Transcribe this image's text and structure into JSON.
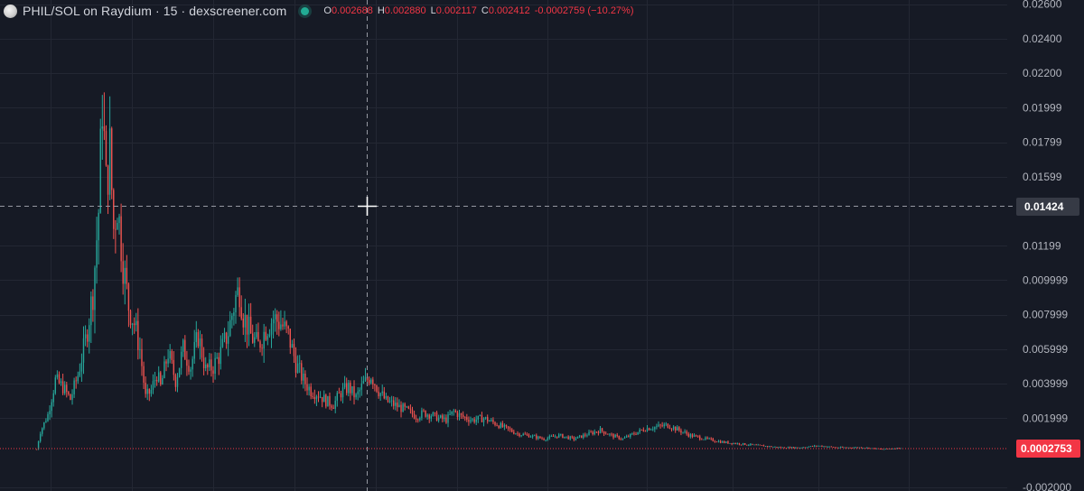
{
  "header": {
    "title": "PHIL/SOL on Raydium · 15 · dexscreener.com",
    "ohlc": {
      "o_label": "O",
      "o_value": "0.002688",
      "h_label": "H",
      "h_value": "0.002880",
      "l_label": "L",
      "l_value": "0.002117",
      "c_label": "C",
      "c_value": "0.002412",
      "change": "-0.0002759 (−10.27%)"
    }
  },
  "colors": {
    "background": "#161a25",
    "grid": "#232733",
    "up": "#26a69a",
    "down": "#ef5350",
    "axis_text": "#b2b5be",
    "crosshair": "#9598a1",
    "last_price_bg": "#f23645",
    "crosshair_label_bg": "#363a45"
  },
  "chart_data": {
    "type": "candlestick",
    "y_ticks": [
      "0.02600",
      "0.02400",
      "0.02200",
      "0.01999",
      "0.01799",
      "0.01599",
      "0.01199",
      "0.009999",
      "0.007999",
      "0.005999",
      "0.003999",
      "0.001999",
      "-0.002000"
    ],
    "ylim": [
      -0.00222,
      0.02624
    ],
    "crosshair_price": "0.01424",
    "last_price": "0.0002753",
    "anchors": [
      [
        0,
        0.0002
      ],
      [
        2,
        0.0012
      ],
      [
        6,
        0.0022
      ],
      [
        10,
        0.0042
      ],
      [
        14,
        0.0038
      ],
      [
        18,
        0.0031
      ],
      [
        22,
        0.0045
      ],
      [
        26,
        0.0065
      ],
      [
        30,
        0.0093
      ],
      [
        33,
        0.014
      ],
      [
        35,
        0.0205
      ],
      [
        37,
        0.0155
      ],
      [
        39,
        0.0175
      ],
      [
        41,
        0.013
      ],
      [
        43,
        0.0145
      ],
      [
        46,
        0.011
      ],
      [
        49,
        0.0085
      ],
      [
        52,
        0.0075
      ],
      [
        55,
        0.006
      ],
      [
        58,
        0.0032
      ],
      [
        61,
        0.0036
      ],
      [
        64,
        0.0046
      ],
      [
        66,
        0.0038
      ],
      [
        70,
        0.0058
      ],
      [
        74,
        0.0042
      ],
      [
        78,
        0.006
      ],
      [
        82,
        0.005
      ],
      [
        86,
        0.0068
      ],
      [
        90,
        0.0048
      ],
      [
        94,
        0.005
      ],
      [
        98,
        0.0058
      ],
      [
        102,
        0.007
      ],
      [
        106,
        0.009
      ],
      [
        108,
        0.0095
      ],
      [
        110,
        0.008
      ],
      [
        114,
        0.0068
      ],
      [
        118,
        0.0062
      ],
      [
        122,
        0.0072
      ],
      [
        126,
        0.0078
      ],
      [
        130,
        0.0075
      ],
      [
        134,
        0.0068
      ],
      [
        138,
        0.0052
      ],
      [
        142,
        0.0042
      ],
      [
        146,
        0.0036
      ],
      [
        150,
        0.0034
      ],
      [
        154,
        0.003
      ],
      [
        158,
        0.0028
      ],
      [
        162,
        0.0035
      ],
      [
        166,
        0.0038
      ],
      [
        170,
        0.0032
      ],
      [
        174,
        0.004
      ],
      [
        178,
        0.0045
      ],
      [
        182,
        0.0036
      ],
      [
        186,
        0.003
      ],
      [
        190,
        0.0028
      ],
      [
        194,
        0.0026
      ],
      [
        198,
        0.0024
      ],
      [
        202,
        0.0021
      ],
      [
        206,
        0.0023
      ],
      [
        210,
        0.0022
      ],
      [
        214,
        0.002
      ],
      [
        218,
        0.0019
      ],
      [
        222,
        0.0024
      ],
      [
        226,
        0.0021
      ],
      [
        232,
        0.0019
      ],
      [
        238,
        0.002
      ],
      [
        244,
        0.0017
      ],
      [
        250,
        0.0014
      ],
      [
        256,
        0.0011
      ],
      [
        262,
        0.001
      ],
      [
        270,
        0.0008
      ],
      [
        278,
        0.001
      ],
      [
        286,
        0.0008
      ],
      [
        294,
        0.0011
      ],
      [
        300,
        0.0013
      ],
      [
        306,
        0.001
      ],
      [
        312,
        0.0008
      ],
      [
        318,
        0.0011
      ],
      [
        324,
        0.0014
      ],
      [
        330,
        0.0015
      ],
      [
        336,
        0.0016
      ],
      [
        342,
        0.0013
      ],
      [
        348,
        0.001
      ],
      [
        356,
        0.0008
      ],
      [
        366,
        0.0006
      ],
      [
        376,
        0.0005
      ],
      [
        386,
        0.0004
      ],
      [
        396,
        0.0003
      ],
      [
        406,
        0.0003
      ],
      [
        416,
        0.0004
      ],
      [
        426,
        0.0003
      ],
      [
        440,
        0.0003
      ],
      [
        450,
        0.0002
      ],
      [
        460,
        0.00028
      ]
    ]
  }
}
